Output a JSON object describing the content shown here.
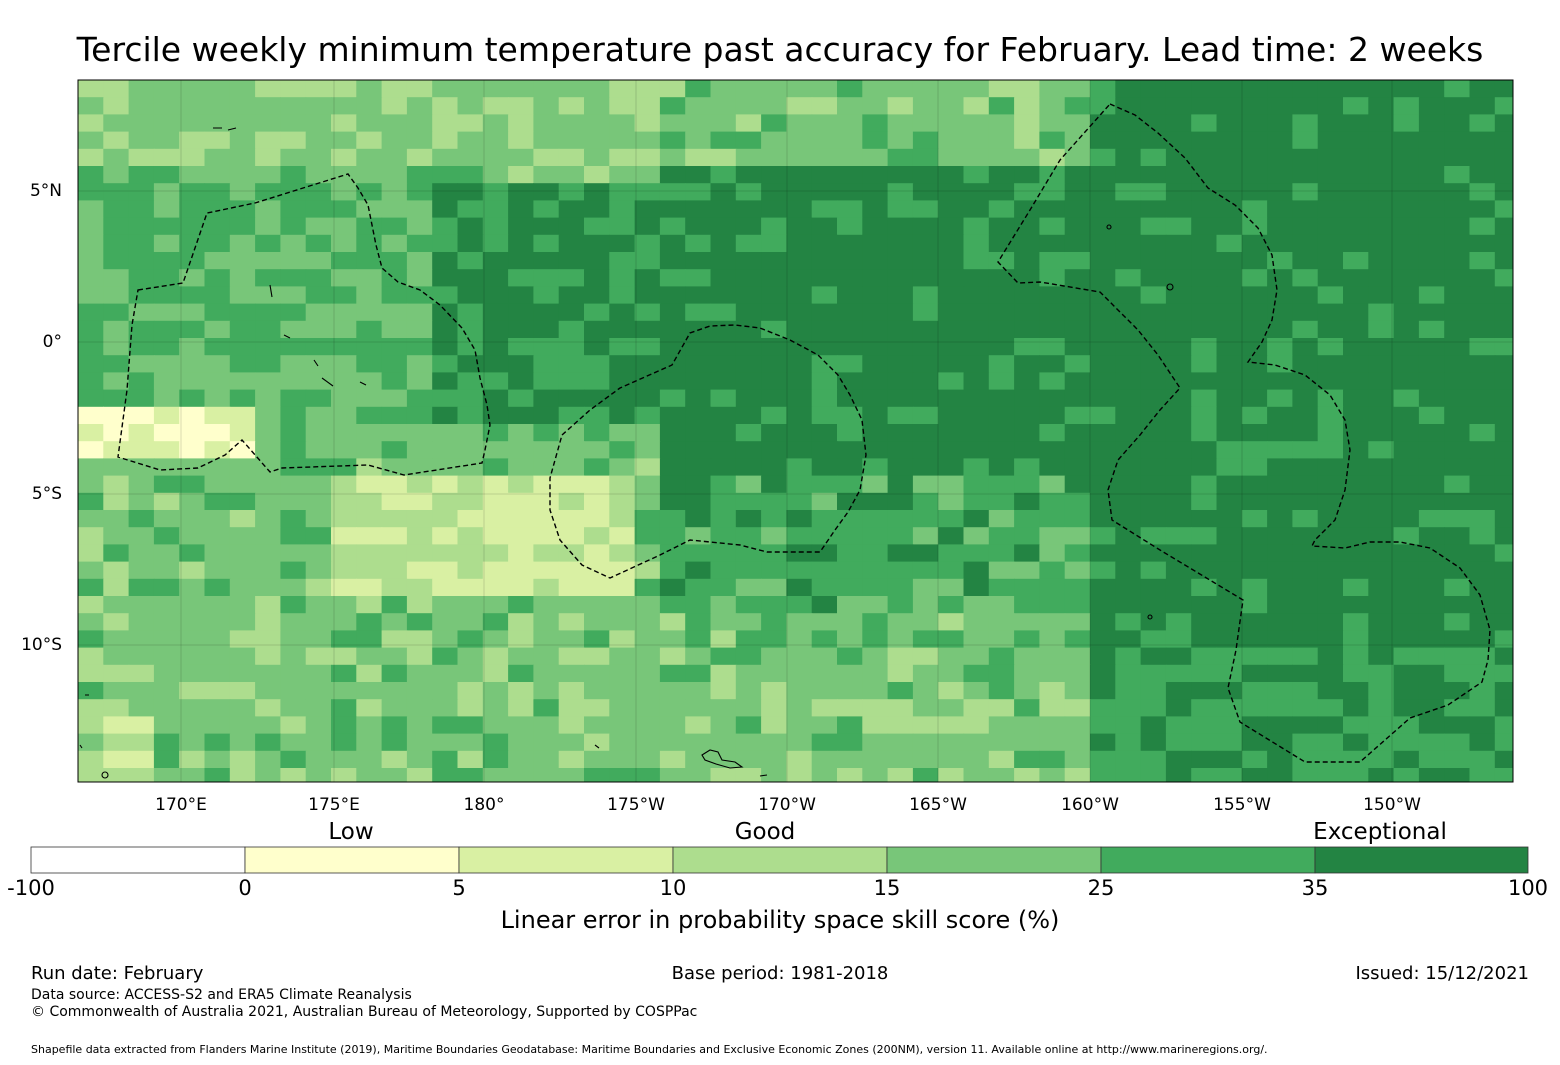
{
  "title": "Tercile weekly minimum temperature past accuracy for February. Lead time: 2 weeks",
  "map": {
    "lon_ticks": [
      "170°E",
      "175°E",
      "180°",
      "175°W",
      "170°W",
      "165°W",
      "160°W",
      "155°W",
      "150°W"
    ],
    "lat_ticks": [
      "5°N",
      "0°",
      "5°S",
      "10°S"
    ]
  },
  "colorbar": {
    "categories": [
      "Low",
      "Good",
      "Exceptional"
    ],
    "ticks": [
      "-100",
      "0",
      "5",
      "10",
      "15",
      "25",
      "35",
      "100"
    ],
    "colors": [
      "#ffffff",
      "#ffffcc",
      "#d9f0a3",
      "#addd8e",
      "#78c679",
      "#41ab5d",
      "#238443"
    ],
    "title": "Linear error in probability space skill score (%)"
  },
  "footer": {
    "run_date": "Run date: February",
    "base_period": "Base period: 1981-2018",
    "issued": "Issued: 15/12/2021",
    "data_source": "Data source: ACCESS-S2 and ERA5 Climate Reanalysis",
    "copyright": "© Commonwealth of Australia 2021, Australian Bureau of Meteorology, Supported by COSPPac",
    "shapefile": "Shapefile data extracted from Flanders Marine Institute (2019), Maritime Boundaries Geodatabase: Maritime Boundaries and Exclusive Economic Zones (200NM), version 11. Available online at http://www.marineregions.org/."
  }
}
